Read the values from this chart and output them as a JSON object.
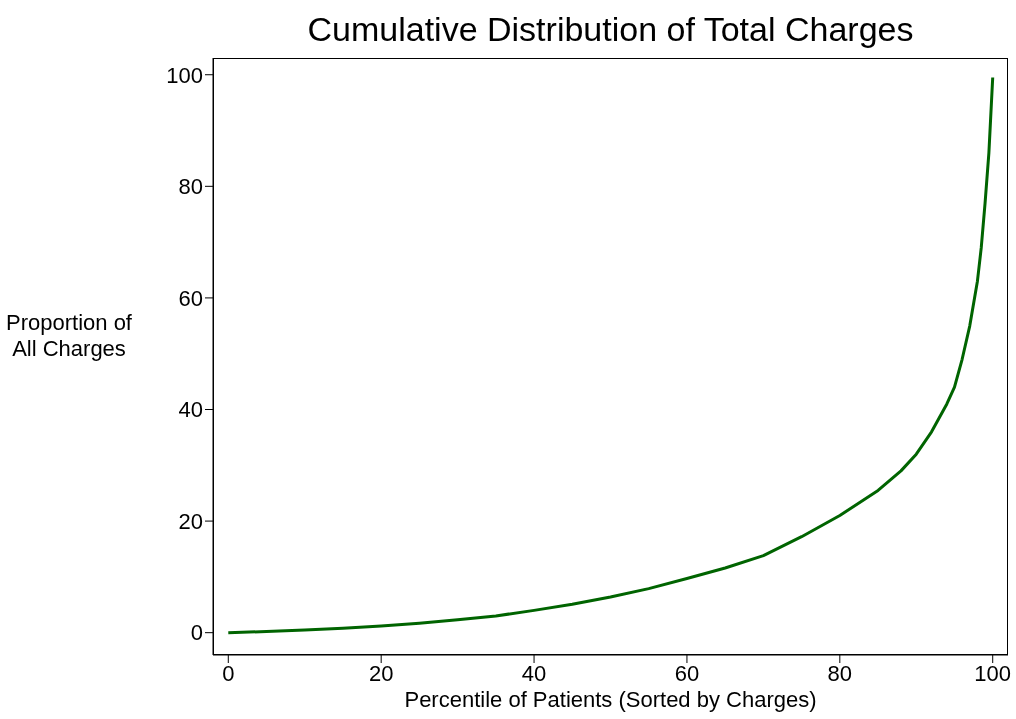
{
  "chart_data": {
    "type": "line",
    "title": "Cumulative Distribution of Total Charges",
    "xlabel": "Percentile of Patients (Sorted by Charges)",
    "ylabel": "Proportion of All Charges",
    "x": [
      0,
      5,
      10,
      15,
      20,
      25,
      30,
      35,
      40,
      45,
      50,
      55,
      60,
      65,
      70,
      75,
      80,
      85,
      88,
      90,
      92,
      94,
      95,
      96,
      97,
      98,
      98.5,
      99,
      99.5,
      100
    ],
    "series": [
      {
        "color": "#006400",
        "values": [
          0,
          0.2,
          0.5,
          0.8,
          1.2,
          1.7,
          2.3,
          3.0,
          4,
          5.1,
          6.4,
          7.9,
          9.7,
          11.6,
          13.8,
          17.2,
          21,
          25.5,
          29,
          32,
          36,
          41,
          44,
          49,
          55,
          63,
          69,
          77,
          86,
          99.5
        ]
      }
    ],
    "xlim": [
      -2,
      102
    ],
    "ylim": [
      -4,
      103
    ],
    "xticks": [
      0,
      20,
      40,
      60,
      80,
      100
    ],
    "yticks": [
      0,
      20,
      40,
      60,
      80,
      100
    ],
    "grid": false,
    "legend": false,
    "marker": "none",
    "line_style": "solid"
  }
}
